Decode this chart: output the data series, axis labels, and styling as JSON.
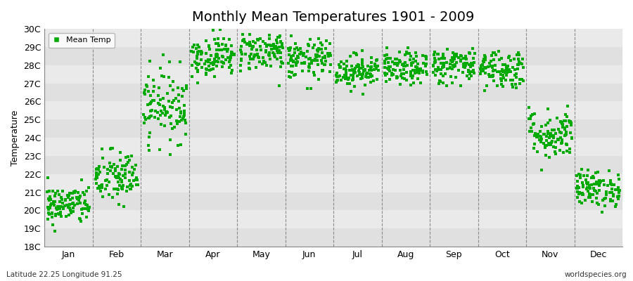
{
  "title": "Monthly Mean Temperatures 1901 - 2009",
  "ylabel": "Temperature",
  "subtitle_left": "Latitude 22.25 Longitude 91.25",
  "subtitle_right": "worldspecies.org",
  "legend_label": "Mean Temp",
  "dot_color": "#00AA00",
  "dot_size": 5,
  "months": [
    "Jan",
    "Feb",
    "Mar",
    "Apr",
    "May",
    "Jun",
    "Jul",
    "Aug",
    "Sep",
    "Oct",
    "Nov",
    "Dec"
  ],
  "ylim": [
    18,
    30
  ],
  "yticks": [
    18,
    19,
    20,
    21,
    22,
    23,
    24,
    25,
    26,
    27,
    28,
    29,
    30
  ],
  "ytick_labels": [
    "18C",
    "19C",
    "20C",
    "21C",
    "22C",
    "23C",
    "24C",
    "25C",
    "26C",
    "27C",
    "28C",
    "29C",
    "30C"
  ],
  "background_color": "#ffffff",
  "plot_bg_color": "#e8e8e8",
  "grid_color": "#666666",
  "num_years": 109,
  "month_mean_temps": [
    20.3,
    21.8,
    25.8,
    28.5,
    28.8,
    28.3,
    27.7,
    27.8,
    28.0,
    27.8,
    24.2,
    21.2
  ],
  "month_std_temps": [
    0.55,
    0.75,
    1.0,
    0.55,
    0.55,
    0.55,
    0.45,
    0.45,
    0.5,
    0.55,
    0.7,
    0.5
  ],
  "seed": 42,
  "band_colors": [
    "#e0e0e0",
    "#eaeaea"
  ],
  "title_fontsize": 14
}
